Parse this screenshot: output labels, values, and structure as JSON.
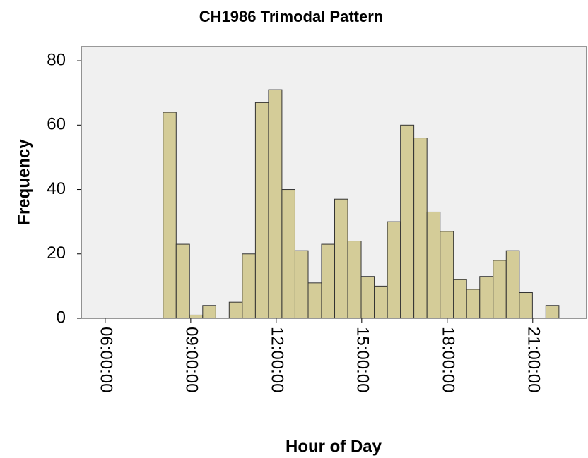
{
  "chart_data": {
    "type": "histogram",
    "title": "CH1986 Trimodal Pattern",
    "x_label": "Hour of Day",
    "y_label": "Frequency",
    "bins": [
      8.03,
      8.49,
      8.96,
      9.42,
      9.88,
      10.35,
      10.81,
      11.27,
      11.73,
      12.2,
      12.66,
      13.12,
      13.59,
      14.05,
      14.51,
      14.98,
      15.44,
      15.9,
      16.36,
      16.83,
      17.29,
      17.75,
      18.22,
      18.68,
      19.14,
      19.61,
      20.07,
      20.53,
      20.99,
      21.46,
      21.92
    ],
    "counts": [
      64,
      23,
      1,
      4,
      0,
      5,
      20,
      67,
      71,
      40,
      21,
      11,
      23,
      37,
      24,
      13,
      10,
      30,
      60,
      56,
      33,
      27,
      12,
      9,
      13,
      18,
      21,
      8,
      0,
      4
    ],
    "color": "#d4cc98",
    "xlim": [
      5.16,
      22.89
    ],
    "xticks": [
      {
        "value": 6,
        "label": "06:00:00"
      },
      {
        "value": 9,
        "label": "09:00:00"
      },
      {
        "value": 12,
        "label": "12:00:00"
      },
      {
        "value": 15,
        "label": "15:00:00"
      },
      {
        "value": 18,
        "label": "18:00:00"
      },
      {
        "value": 21,
        "label": "21:00:00"
      }
    ],
    "ylim": [
      0,
      84.4
    ],
    "yticks": [
      0,
      20,
      40,
      60,
      80
    ],
    "grid": false
  }
}
